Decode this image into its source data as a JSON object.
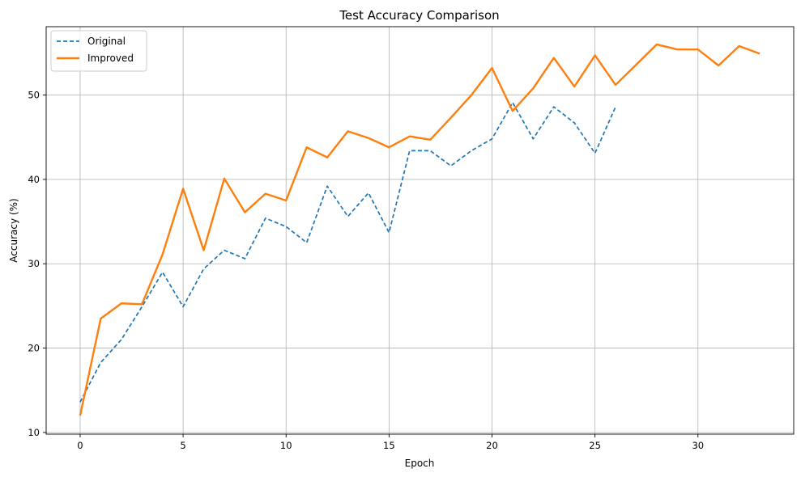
{
  "chart_data": {
    "type": "line",
    "title": "Test Accuracy Comparison",
    "xlabel": "Epoch",
    "ylabel": "Accuracy (%)",
    "xlim": [
      -1.65,
      34.65
    ],
    "ylim": [
      9.8,
      58.1
    ],
    "xticks": [
      0,
      5,
      10,
      15,
      20,
      25,
      30
    ],
    "yticks": [
      10,
      20,
      30,
      40,
      50
    ],
    "grid": true,
    "legend_position": "top-left",
    "series": [
      {
        "name": "Original",
        "color": "#1f77b4",
        "style": "dashed",
        "x": [
          0,
          1,
          2,
          3,
          4,
          5,
          6,
          7,
          8,
          9,
          10,
          11,
          12,
          13,
          14,
          15,
          16,
          17,
          18,
          19,
          20,
          21,
          22,
          23,
          24,
          25,
          26
        ],
        "y": [
          13.6,
          18.3,
          21.0,
          24.9,
          29.0,
          24.9,
          29.4,
          31.6,
          30.6,
          35.4,
          34.4,
          32.5,
          39.2,
          35.6,
          38.4,
          33.7,
          43.4,
          43.4,
          41.6,
          43.4,
          44.8,
          49.1,
          44.8,
          48.6,
          46.7,
          43.1,
          48.6
        ]
      },
      {
        "name": "Improved",
        "color": "#ff7f0e",
        "style": "solid",
        "x": [
          0,
          1,
          2,
          3,
          4,
          5,
          6,
          7,
          8,
          9,
          10,
          11,
          12,
          13,
          14,
          15,
          16,
          17,
          18,
          19,
          20,
          21,
          22,
          23,
          24,
          25,
          26,
          27,
          28,
          29,
          30,
          31,
          32,
          33
        ],
        "y": [
          12.0,
          23.5,
          25.3,
          25.2,
          31.1,
          38.9,
          31.6,
          40.1,
          36.1,
          38.3,
          37.5,
          43.8,
          42.6,
          45.7,
          44.9,
          43.8,
          45.1,
          44.7,
          47.3,
          50.0,
          53.2,
          48.1,
          50.8,
          54.4,
          51.0,
          54.7,
          51.2,
          53.6,
          56.0,
          55.4,
          55.4,
          53.5,
          55.8,
          54.9
        ]
      }
    ]
  }
}
